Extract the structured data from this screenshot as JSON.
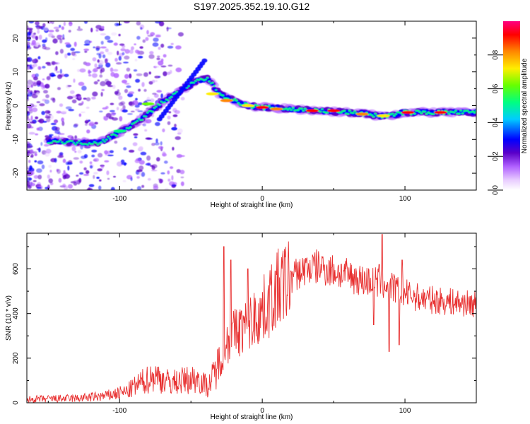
{
  "title": "S197.2025.352.19.10.G12",
  "chart_data": [
    {
      "type": "heatmap",
      "xlabel": "Height of straight line (km)",
      "ylabel": "Frequency (Hz)",
      "xlim": [
        -165,
        150
      ],
      "ylim": [
        -25,
        25
      ],
      "xticks": [
        -100,
        0,
        100
      ],
      "yticks": [
        -20,
        -10,
        0,
        10,
        20
      ],
      "ridge": {
        "x": [
          -145,
          -130,
          -115,
          -100,
          -85,
          -70,
          -55,
          -45,
          -38,
          -30,
          -20,
          -10,
          0,
          20,
          40,
          60,
          75,
          80,
          88,
          100,
          120,
          150
        ],
        "y": [
          -10.5,
          -11,
          -11,
          -8,
          -4,
          1,
          5,
          7.5,
          8,
          3.5,
          1.5,
          0,
          -0.5,
          -1,
          -1.5,
          -2,
          -2.5,
          -3,
          -3,
          -2,
          -2,
          -2
        ]
      },
      "colorbar": {
        "label": "Normalized spectral amplitude",
        "range": [
          0,
          1
        ],
        "ticks": [
          0.0,
          0.2,
          0.4,
          0.6,
          0.8
        ],
        "colors": [
          "#ffffff",
          "#e8ccff",
          "#b060ff",
          "#5a00c8",
          "#0000ff",
          "#00ccff",
          "#00ff80",
          "#66ff00",
          "#ffee00",
          "#ff8800",
          "#ff0000",
          "#ff0080"
        ]
      }
    },
    {
      "type": "line",
      "xlabel": "Height of straight line (km)",
      "ylabel": "SNR (10 * v/v)",
      "xlim": [
        -165,
        150
      ],
      "ylim": [
        0,
        760
      ],
      "xticks": [
        -100,
        0,
        100
      ],
      "yticks": [
        0,
        200,
        400,
        600
      ],
      "color": "#e83030",
      "envelope": {
        "x": [
          -165,
          -130,
          -110,
          -95,
          -85,
          -75,
          -65,
          -55,
          -45,
          -38,
          -30,
          -25,
          -20,
          -10,
          0,
          10,
          20,
          30,
          40,
          50,
          60,
          70,
          80,
          90,
          100,
          110,
          120,
          135,
          150
        ],
        "y": [
          15,
          20,
          30,
          50,
          90,
          120,
          90,
          100,
          110,
          70,
          180,
          270,
          310,
          350,
          410,
          500,
          560,
          600,
          610,
          590,
          570,
          550,
          540,
          520,
          490,
          470,
          460,
          450,
          440
        ]
      },
      "spikes": [
        {
          "x": -27,
          "y": 700
        },
        {
          "x": -22,
          "y": 640
        },
        {
          "x": -10,
          "y": 600
        },
        {
          "x": 78,
          "y": 350
        },
        {
          "x": 82,
          "y": 620
        },
        {
          "x": 84,
          "y": 755
        },
        {
          "x": 89,
          "y": 230
        },
        {
          "x": 96,
          "y": 260
        },
        {
          "x": 98,
          "y": 640
        }
      ]
    }
  ]
}
